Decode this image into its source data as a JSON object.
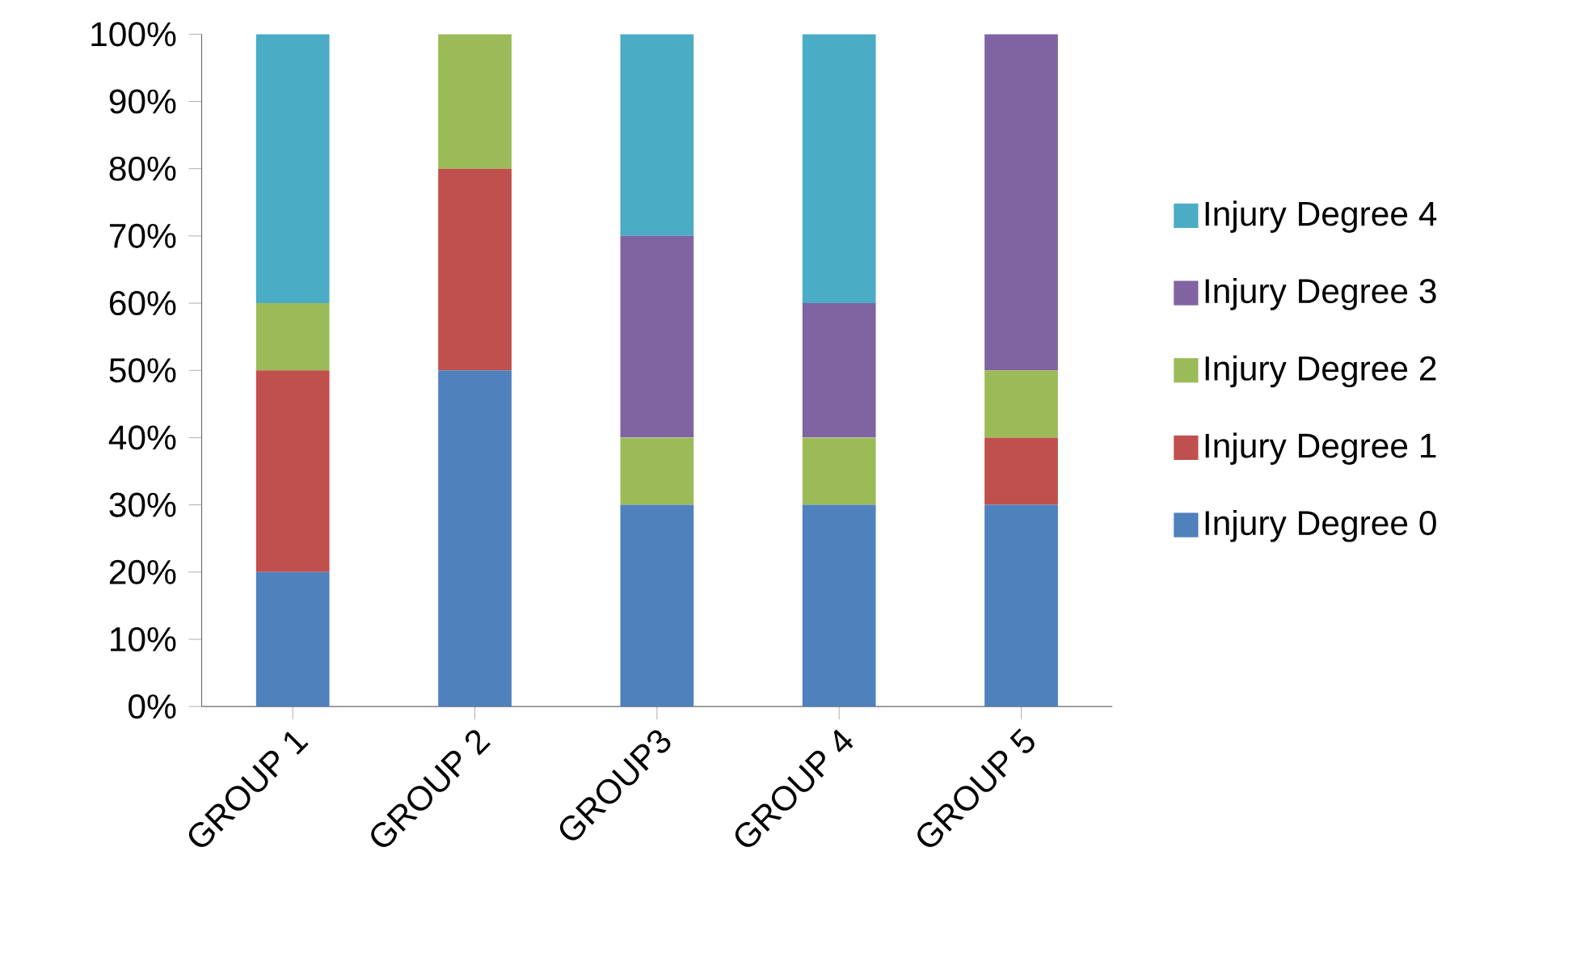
{
  "chart_data": {
    "type": "bar",
    "stacked": true,
    "categories": [
      "GROUP 1",
      "GROUP 2",
      "GROUP3",
      "GROUP 4",
      "GROUP 5"
    ],
    "series": [
      {
        "name": "Injury Degree 0",
        "color": "#4f81bd",
        "values": [
          20,
          50,
          30,
          30,
          30
        ]
      },
      {
        "name": "Injury Degree 1",
        "color": "#c0504d",
        "values": [
          30,
          30,
          0,
          0,
          10
        ]
      },
      {
        "name": "Injury Degree 2",
        "color": "#9bbb59",
        "values": [
          10,
          20,
          10,
          10,
          10
        ]
      },
      {
        "name": "Injury Degree 3",
        "color": "#8064a2",
        "values": [
          0,
          0,
          30,
          20,
          50
        ]
      },
      {
        "name": "Injury Degree 4",
        "color": "#4bacc6",
        "values": [
          40,
          0,
          30,
          40,
          0
        ]
      }
    ],
    "ylim": [
      0,
      100
    ],
    "yticks": [
      {
        "value": 0,
        "label": "0%"
      },
      {
        "value": 10,
        "label": "10%"
      },
      {
        "value": 20,
        "label": "20%"
      },
      {
        "value": 30,
        "label": "30%"
      },
      {
        "value": 40,
        "label": "40%"
      },
      {
        "value": 50,
        "label": "50%"
      },
      {
        "value": 60,
        "label": "60%"
      },
      {
        "value": 70,
        "label": "70%"
      },
      {
        "value": 80,
        "label": "80%"
      },
      {
        "value": 90,
        "label": "90%"
      },
      {
        "value": 100,
        "label": "100%"
      }
    ],
    "legend": "right"
  }
}
